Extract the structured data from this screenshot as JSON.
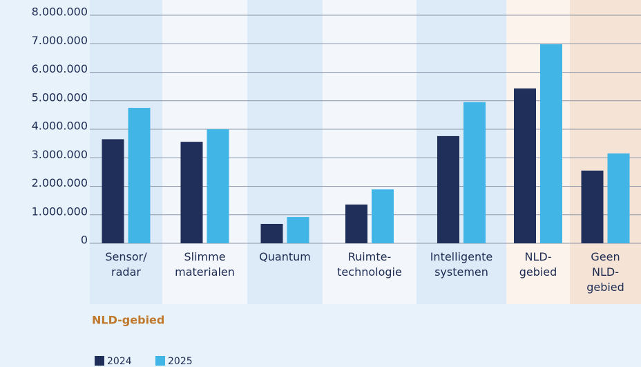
{
  "chart_data": {
    "type": "bar",
    "subtitle": "NLD-gebied",
    "categories": [
      "Sensor/\nradar",
      "Slimme\nmaterialen",
      "Quantum",
      "Ruimte-\ntechnologie",
      "Intelligente\nsystemen",
      "NLD-\ngebied",
      "Geen\nNLD-\ngebied"
    ],
    "category_backgrounds": [
      "#dcebf7",
      "#f3f7fc",
      "#dcebf7",
      "#f3f7fc",
      "#dcebf7",
      "#fcf3ec",
      "#f5e4d5"
    ],
    "series": [
      {
        "name": "2024",
        "color": "#202e5a",
        "values": [
          3650000,
          3560000,
          680000,
          1360000,
          3760000,
          5430000,
          2550000
        ]
      },
      {
        "name": "2025",
        "color": "#41b5e6",
        "values": [
          4750000,
          4000000,
          920000,
          1890000,
          4950000,
          6980000,
          3150000
        ]
      }
    ],
    "ylim": [
      0,
      8000000
    ],
    "yticks": [
      0,
      {
        "value": 1000000,
        "label": "1.000.000"
      },
      {
        "value": 2000000,
        "label": "2.000.000"
      },
      {
        "value": 3000000,
        "label": "3.000.000"
      },
      {
        "value": 4000000,
        "label": "4.000.000"
      },
      {
        "value": 5000000,
        "label": "5.000.000"
      },
      {
        "value": 6000000,
        "label": "6.000.000"
      },
      {
        "value": 7000000,
        "label": "7.000.000"
      },
      {
        "value": 8000000,
        "label": "8.000.000"
      }
    ],
    "grid": true
  }
}
